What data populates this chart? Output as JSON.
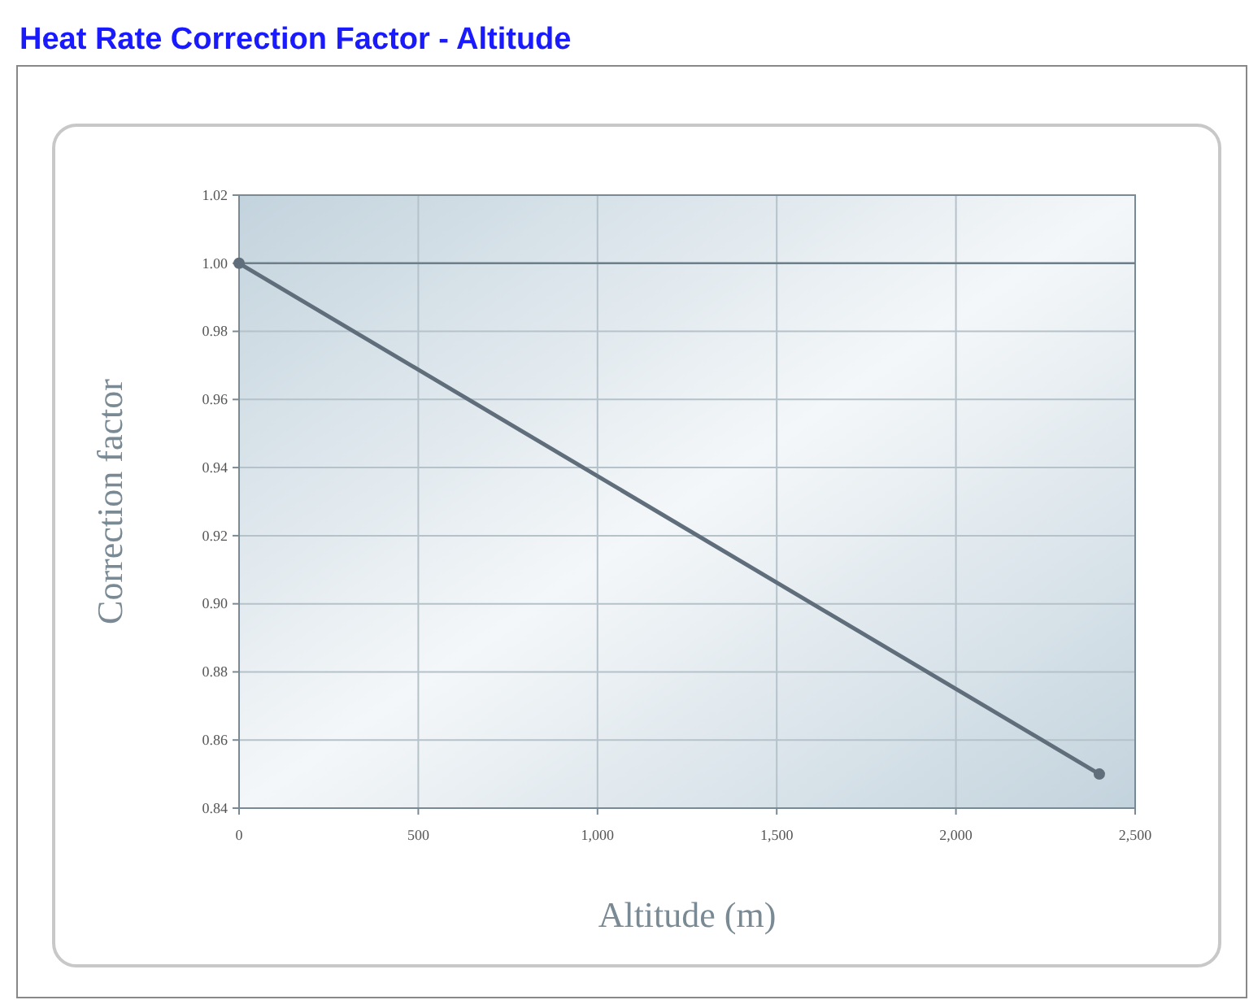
{
  "chart_data": {
    "type": "line",
    "title": "Heat Rate Correction Factor - Altitude",
    "xlabel": "Altitude (m)",
    "ylabel": "Correction factor",
    "x": [
      0,
      2400
    ],
    "series": [
      {
        "color": "#5f6e7a",
        "values": [
          1.0,
          0.85
        ]
      }
    ],
    "xlim": [
      0,
      2500
    ],
    "xticks": [
      0,
      500,
      {
        "value": 1000,
        "label": "1,000"
      },
      {
        "value": 1500,
        "label": "1,500"
      },
      {
        "value": 2000,
        "label": "2,000"
      },
      {
        "value": 2500,
        "label": "2,500"
      }
    ],
    "ylim": [
      0.84,
      1.02
    ],
    "yticks": [
      {
        "value": 0.84,
        "label": "0.84"
      },
      {
        "value": 0.86,
        "label": "0.86"
      },
      {
        "value": 0.88,
        "label": "0.88"
      },
      {
        "value": 0.9,
        "label": "0.90"
      },
      {
        "value": 0.92,
        "label": "0.92"
      },
      {
        "value": 0.94,
        "label": "0.94"
      },
      {
        "value": 0.96,
        "label": "0.96"
      },
      {
        "value": 0.98,
        "label": "0.98"
      },
      {
        "value": 1.0,
        "label": "1.00"
      },
      {
        "value": 1.02,
        "label": "1.02"
      }
    ],
    "ref_lines": [
      {
        "axis": "y",
        "value": 1.0,
        "color": "#6f7f8a"
      }
    ],
    "grid": true,
    "marker": "circle",
    "line_style": "solid"
  }
}
